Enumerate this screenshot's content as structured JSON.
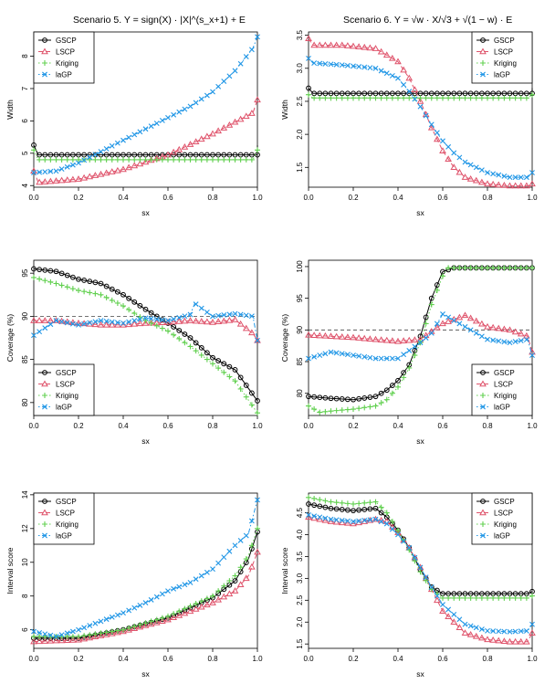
{
  "column_titles": {
    "left": "Scenario 5. Y = sign(X) · |X|^(s_x+1) + E",
    "right": "Scenario 6. Y = √w · X/√3 + √(1 − w) · E"
  },
  "series_styles": {
    "GSCP": {
      "color": "#000000",
      "marker": "circle",
      "dash": "solid"
    },
    "LSCP": {
      "color": "#DF536B",
      "marker": "triangle",
      "dash": "dashed"
    },
    "Kriging": {
      "color": "#61D04F",
      "marker": "plus",
      "dash": "dotted"
    },
    "laGP": {
      "color": "#2297E6",
      "marker": "cross",
      "dash": "dotdash"
    }
  },
  "chart_data": [
    {
      "type": "line",
      "panel": "s5-width",
      "title": "",
      "xlabel": "sx",
      "ylabel": "Width",
      "xlim": [
        0,
        1
      ],
      "ylim": [
        3.95,
        8.75
      ],
      "reference_line": null,
      "xticks": [
        "0.0",
        "0.2",
        "0.4",
        "0.6",
        "0.8",
        "1.0"
      ],
      "yticks": [
        "4",
        "5",
        "6",
        "7",
        "8"
      ],
      "legend": "top-left",
      "grid": false,
      "series": [
        {
          "name": "GSCP",
          "x": [
            0,
            0.02,
            1
          ],
          "values": [
            5.25,
            4.95,
            4.95
          ],
          "end": 5.25
        },
        {
          "name": "LSCP",
          "x": [
            0,
            0.02,
            0.2,
            0.4,
            0.6,
            0.8,
            0.98
          ],
          "values": [
            4.45,
            4.1,
            4.2,
            4.5,
            4.95,
            5.6,
            6.25
          ],
          "end": 6.65
        },
        {
          "name": "Kriging",
          "x": [
            0,
            0.02,
            0.98
          ],
          "values": [
            5.1,
            4.8,
            4.8
          ],
          "end": 5.1
        },
        {
          "name": "laGP",
          "x": [
            0,
            0.1,
            0.2,
            0.3,
            0.4,
            0.5,
            0.6,
            0.7,
            0.8,
            0.9,
            0.98
          ],
          "values": [
            4.4,
            4.45,
            4.7,
            5.05,
            5.4,
            5.75,
            6.1,
            6.45,
            6.9,
            7.55,
            8.25
          ],
          "end": 8.6
        }
      ]
    },
    {
      "type": "line",
      "panel": "s6-width",
      "title": "",
      "xlabel": "sx",
      "ylabel": "Width",
      "xlim": [
        0,
        1
      ],
      "ylim": [
        1.2,
        3.55
      ],
      "reference_line": null,
      "xticks": [
        "0.0",
        "0.2",
        "0.4",
        "0.6",
        "0.8",
        "1.0"
      ],
      "yticks": [
        "1.5",
        "2.0",
        "2.5",
        "3.0",
        "3.5"
      ],
      "legend": "top-right",
      "grid": false,
      "series": [
        {
          "name": "GSCP",
          "x": [
            0,
            0.02,
            1
          ],
          "values": [
            2.7,
            2.62,
            2.62
          ],
          "end": 2.7
        },
        {
          "name": "LSCP",
          "x": [
            0,
            0.02,
            0.15,
            0.3,
            0.4,
            0.45,
            0.5,
            0.55,
            0.6,
            0.65,
            0.7,
            0.8,
            0.9,
            0.98
          ],
          "values": [
            3.45,
            3.35,
            3.35,
            3.3,
            3.1,
            2.85,
            2.5,
            2.1,
            1.75,
            1.5,
            1.35,
            1.25,
            1.22,
            1.22
          ],
          "end": 1.25
        },
        {
          "name": "Kriging",
          "x": [
            0,
            0.02,
            0.98
          ],
          "values": [
            2.6,
            2.55,
            2.55
          ],
          "end": 2.6
        },
        {
          "name": "laGP",
          "x": [
            0,
            0.02,
            0.15,
            0.3,
            0.4,
            0.45,
            0.5,
            0.55,
            0.6,
            0.65,
            0.7,
            0.8,
            0.9,
            0.98
          ],
          "values": [
            3.15,
            3.08,
            3.05,
            3.0,
            2.85,
            2.65,
            2.42,
            2.15,
            1.9,
            1.72,
            1.58,
            1.42,
            1.35,
            1.35
          ],
          "end": 1.42
        }
      ]
    },
    {
      "type": "line",
      "panel": "s5-coverage",
      "title": "",
      "xlabel": "sx",
      "ylabel": "Coverage (%)",
      "xlim": [
        0,
        1
      ],
      "ylim": [
        78.5,
        96.5
      ],
      "reference_line": 90,
      "xticks": [
        "0.0",
        "0.2",
        "0.4",
        "0.6",
        "0.8",
        "1.0"
      ],
      "yticks": [
        "80",
        "85",
        "90",
        "95"
      ],
      "legend": "bottom-left",
      "grid": false,
      "series": [
        {
          "name": "GSCP",
          "x": [
            0,
            0.1,
            0.2,
            0.3,
            0.4,
            0.5,
            0.6,
            0.7,
            0.8,
            0.9,
            1.0
          ],
          "values": [
            95.5,
            95.2,
            94.3,
            93.8,
            92.5,
            90.8,
            89.2,
            87.5,
            85.2,
            83.8,
            80.2
          ]
        },
        {
          "name": "LSCP",
          "x": [
            0,
            0.1,
            0.2,
            0.3,
            0.4,
            0.5,
            0.6,
            0.7,
            0.8,
            0.9,
            0.98,
            1.0
          ],
          "values": [
            89.5,
            89.5,
            89.2,
            89.0,
            89.0,
            89.2,
            89.3,
            89.5,
            89.3,
            89.6,
            88.0,
            87.2
          ]
        },
        {
          "name": "Kriging",
          "x": [
            0,
            0.1,
            0.2,
            0.3,
            0.4,
            0.5,
            0.6,
            0.7,
            0.8,
            0.9,
            1.0
          ],
          "values": [
            94.5,
            93.8,
            93.0,
            92.5,
            91.2,
            89.5,
            88.3,
            86.5,
            84.5,
            82.5,
            78.8
          ]
        },
        {
          "name": "laGP",
          "x": [
            0,
            0.1,
            0.2,
            0.3,
            0.4,
            0.5,
            0.6,
            0.7,
            0.72,
            0.8,
            0.9,
            0.98,
            1.0
          ],
          "values": [
            87.8,
            89.5,
            89.0,
            89.5,
            89.2,
            89.8,
            89.5,
            90.2,
            91.5,
            90.0,
            90.3,
            90.0,
            87.2
          ]
        }
      ]
    },
    {
      "type": "line",
      "panel": "s6-coverage",
      "title": "",
      "xlabel": "sx",
      "ylabel": "Coverage (%)",
      "xlim": [
        0,
        1
      ],
      "ylim": [
        76.5,
        101
      ],
      "reference_line": 90,
      "xticks": [
        "0.0",
        "0.2",
        "0.4",
        "0.6",
        "0.8",
        "1.0"
      ],
      "yticks": [
        "80",
        "85",
        "90",
        "95",
        "100"
      ],
      "legend": "bottom-right",
      "grid": false,
      "series": [
        {
          "name": "GSCP",
          "x": [
            0,
            0.1,
            0.2,
            0.3,
            0.35,
            0.4,
            0.45,
            0.5,
            0.55,
            0.6,
            0.65,
            1.0
          ],
          "values": [
            79.5,
            79.2,
            79.0,
            79.5,
            80.5,
            82.0,
            84.5,
            89.0,
            95.0,
            99.2,
            99.8,
            99.8
          ]
        },
        {
          "name": "LSCP",
          "x": [
            0,
            0.1,
            0.2,
            0.3,
            0.4,
            0.5,
            0.6,
            0.7,
            0.8,
            0.9,
            0.98,
            1.0
          ],
          "values": [
            89.2,
            89.0,
            88.8,
            88.5,
            88.2,
            88.5,
            91.0,
            92.3,
            90.5,
            90.0,
            89.0,
            86.5
          ]
        },
        {
          "name": "Kriging",
          "x": [
            0,
            0.05,
            0.1,
            0.2,
            0.3,
            0.35,
            0.4,
            0.45,
            0.5,
            0.55,
            0.6,
            0.62,
            1.0
          ],
          "values": [
            78.0,
            77.0,
            77.2,
            77.5,
            78.0,
            79.0,
            81.0,
            84.0,
            88.0,
            94.0,
            98.5,
            99.8,
            99.8
          ]
        },
        {
          "name": "laGP",
          "x": [
            0,
            0.1,
            0.2,
            0.3,
            0.4,
            0.5,
            0.55,
            0.6,
            0.65,
            0.7,
            0.8,
            0.9,
            0.98,
            1.0
          ],
          "values": [
            85.5,
            86.5,
            86.0,
            85.5,
            85.5,
            88.0,
            89.5,
            92.5,
            91.5,
            90.5,
            88.5,
            88.0,
            88.5,
            86.0
          ]
        }
      ]
    },
    {
      "type": "line",
      "panel": "s5-interval-score",
      "title": "",
      "xlabel": "sx",
      "ylabel": "Interval score",
      "xlim": [
        0,
        1
      ],
      "ylim": [
        4.9,
        14.1
      ],
      "reference_line": null,
      "xticks": [
        "0.0",
        "0.2",
        "0.4",
        "0.6",
        "0.8",
        "1.0"
      ],
      "yticks": [
        "6",
        "8",
        "10",
        "12",
        "14"
      ],
      "legend": "top-left",
      "grid": false,
      "series": [
        {
          "name": "GSCP",
          "x": [
            0,
            0.2,
            0.4,
            0.6,
            0.8,
            0.9,
            0.96,
            1.0
          ],
          "values": [
            5.5,
            5.5,
            6.0,
            6.7,
            7.9,
            8.9,
            10.2,
            11.8
          ]
        },
        {
          "name": "LSCP",
          "x": [
            0,
            0.2,
            0.4,
            0.6,
            0.8,
            0.9,
            0.96,
            1.0
          ],
          "values": [
            5.3,
            5.4,
            5.9,
            6.6,
            7.6,
            8.3,
            9.2,
            10.6
          ]
        },
        {
          "name": "Kriging",
          "x": [
            0,
            0.2,
            0.4,
            0.6,
            0.8,
            0.9,
            0.96,
            1.0
          ],
          "values": [
            5.6,
            5.6,
            6.0,
            6.8,
            8.0,
            9.2,
            10.4,
            12.0
          ]
        },
        {
          "name": "laGP",
          "x": [
            0,
            0.1,
            0.2,
            0.3,
            0.4,
            0.5,
            0.6,
            0.7,
            0.8,
            0.9,
            0.96,
            1.0
          ],
          "values": [
            5.9,
            5.6,
            6.0,
            6.5,
            7.0,
            7.6,
            8.3,
            8.8,
            9.6,
            11.0,
            11.7,
            13.7
          ]
        }
      ]
    },
    {
      "type": "line",
      "panel": "s6-interval-score",
      "title": "",
      "xlabel": "sx",
      "ylabel": "Interval score",
      "xlim": [
        0,
        1
      ],
      "ylim": [
        1.4,
        4.95
      ],
      "reference_line": null,
      "xticks": [
        "0.0",
        "0.2",
        "0.4",
        "0.6",
        "0.8",
        "1.0"
      ],
      "yticks": [
        "1.5",
        "2.0",
        "2.5",
        "3.0",
        "3.5",
        "4.0",
        "4.5"
      ],
      "legend": "top-right",
      "grid": false,
      "series": [
        {
          "name": "GSCP",
          "x": [
            0,
            0.1,
            0.2,
            0.3,
            0.35,
            0.4,
            0.45,
            0.5,
            0.55,
            0.6,
            0.98,
            1.0
          ],
          "values": [
            4.7,
            4.6,
            4.55,
            4.6,
            4.4,
            4.1,
            3.7,
            3.2,
            2.8,
            2.65,
            2.65,
            2.7
          ]
        },
        {
          "name": "LSCP",
          "x": [
            0,
            0.1,
            0.2,
            0.3,
            0.35,
            0.4,
            0.45,
            0.5,
            0.55,
            0.6,
            0.7,
            0.8,
            0.9,
            0.98,
            1.0
          ],
          "values": [
            4.4,
            4.3,
            4.25,
            4.35,
            4.3,
            4.05,
            3.7,
            3.25,
            2.75,
            2.25,
            1.75,
            1.6,
            1.55,
            1.55,
            1.75
          ]
        },
        {
          "name": "Kriging",
          "x": [
            0,
            0.1,
            0.2,
            0.3,
            0.35,
            0.4,
            0.45,
            0.5,
            0.55,
            0.6,
            0.98,
            1.0
          ],
          "values": [
            4.85,
            4.75,
            4.7,
            4.75,
            4.5,
            4.1,
            3.65,
            3.15,
            2.75,
            2.55,
            2.55,
            2.6
          ]
        },
        {
          "name": "laGP",
          "x": [
            0,
            0.1,
            0.2,
            0.3,
            0.35,
            0.4,
            0.45,
            0.5,
            0.55,
            0.6,
            0.7,
            0.8,
            0.9,
            0.98,
            1.0
          ],
          "values": [
            4.45,
            4.35,
            4.3,
            4.35,
            4.25,
            4.0,
            3.7,
            3.25,
            2.8,
            2.4,
            1.95,
            1.8,
            1.78,
            1.8,
            1.95
          ]
        }
      ]
    }
  ]
}
